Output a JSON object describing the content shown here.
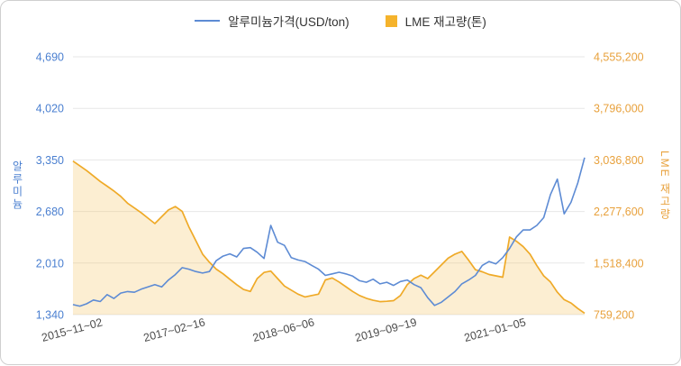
{
  "chart_data": {
    "type": "line-area-combo",
    "title": "",
    "grid_color": "#e7e7e7",
    "x_label_color": "#4d4d4d",
    "x_ticks": [
      {
        "label": "2015~11~02",
        "index": 0
      },
      {
        "label": "2017~02~16",
        "index": 15
      },
      {
        "label": "2018~06~06",
        "index": 31
      },
      {
        "label": "2019~09~19",
        "index": 46
      },
      {
        "label": "2021~01~05",
        "index": 62
      }
    ],
    "left_axis": {
      "title": "알루미늄",
      "color": "#4a7fd0",
      "min": 1340,
      "max": 4690,
      "ticks": [
        {
          "value": 1340,
          "label": "1,340"
        },
        {
          "value": 2010,
          "label": "2,010"
        },
        {
          "value": 2680,
          "label": "2,680"
        },
        {
          "value": 3350,
          "label": "3,350"
        },
        {
          "value": 4020,
          "label": "4,020"
        },
        {
          "value": 4690,
          "label": "4,690"
        }
      ]
    },
    "right_axis": {
      "title": "LME 재고량",
      "color": "#e8a13c",
      "min": 759200,
      "max": 4555200,
      "ticks": [
        {
          "value": 759200,
          "label": "759,200"
        },
        {
          "value": 1518400,
          "label": "1,518,400"
        },
        {
          "value": 2277600,
          "label": "2,277,600"
        },
        {
          "value": 3036800,
          "label": "3,036,800"
        },
        {
          "value": 3796000,
          "label": "3,796,000"
        },
        {
          "value": 4555200,
          "label": "4,555,200"
        }
      ]
    },
    "series": [
      {
        "name": "알루미늄가격(USD/ton)",
        "type": "line",
        "axis": "left",
        "color": "#5d8bd4",
        "values": [
          1470,
          1450,
          1480,
          1530,
          1510,
          1600,
          1550,
          1620,
          1640,
          1630,
          1670,
          1700,
          1730,
          1700,
          1790,
          1860,
          1950,
          1930,
          1900,
          1880,
          1900,
          2040,
          2100,
          2130,
          2090,
          2200,
          2210,
          2150,
          2070,
          2500,
          2280,
          2240,
          2080,
          2050,
          2030,
          1980,
          1930,
          1850,
          1870,
          1890,
          1870,
          1840,
          1780,
          1760,
          1800,
          1740,
          1760,
          1720,
          1770,
          1790,
          1730,
          1690,
          1560,
          1460,
          1500,
          1570,
          1640,
          1740,
          1790,
          1850,
          1980,
          2030,
          2000,
          2080,
          2200,
          2350,
          2440,
          2440,
          2500,
          2600,
          2900,
          3100,
          2650,
          2800,
          3050,
          3380
        ]
      },
      {
        "name": "LME 재고량(톤)",
        "type": "area",
        "axis": "right",
        "color": "#efaa28",
        "legend_color": "#f5b32c",
        "fill": "#f6c35c",
        "fill_opacity": 0.28,
        "values": [
          3020000,
          2950000,
          2880000,
          2800000,
          2720000,
          2650000,
          2580000,
          2500000,
          2400000,
          2330000,
          2260000,
          2180000,
          2100000,
          2200000,
          2300000,
          2350000,
          2280000,
          2050000,
          1850000,
          1650000,
          1530000,
          1430000,
          1360000,
          1280000,
          1200000,
          1130000,
          1100000,
          1290000,
          1380000,
          1400000,
          1290000,
          1180000,
          1120000,
          1060000,
          1020000,
          1040000,
          1060000,
          1270000,
          1300000,
          1240000,
          1170000,
          1100000,
          1040000,
          1000000,
          970000,
          950000,
          955000,
          965000,
          1040000,
          1200000,
          1290000,
          1340000,
          1290000,
          1390000,
          1490000,
          1590000,
          1650000,
          1690000,
          1560000,
          1420000,
          1390000,
          1350000,
          1330000,
          1310000,
          1900000,
          1840000,
          1760000,
          1650000,
          1480000,
          1330000,
          1240000,
          1090000,
          980000,
          930000,
          850000,
          780000
        ]
      }
    ]
  }
}
